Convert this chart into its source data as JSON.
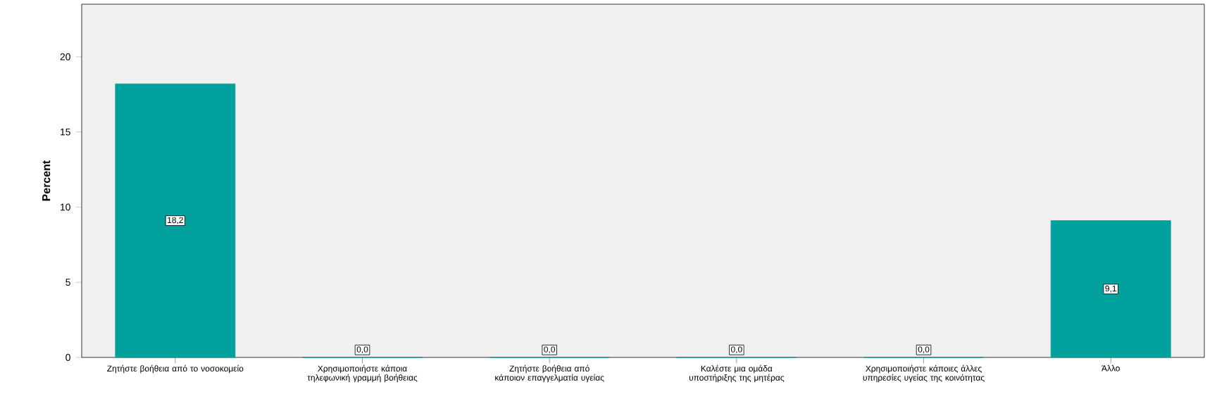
{
  "chart_data": {
    "type": "bar",
    "ylabel": "Percent",
    "categories": [
      "Ζητήστε βοήθεια από το νοσοκομείο",
      "Χρησιμοποιήστε κάποια τηλεφωνική γραμμή βοήθειας",
      "Ζητήστε βοήθεια από κάποιον επαγγελματία υγείας",
      "Καλέστε μια ομάδα υποστήριξης της μητέρας",
      "Χρησιμοποιήστε κάποιες άλλες υπηρεσίες υγείας της κοινότητας",
      "Άλλο"
    ],
    "values": [
      18.2,
      0,
      0,
      0,
      0,
      9.1
    ],
    "value_labels": [
      "18,2",
      "0,0",
      "0,0",
      "0,0",
      "0,0",
      "9,1"
    ],
    "color": "#00a19c",
    "ylim": [
      0,
      23.5
    ],
    "yticks": [
      0,
      5,
      10,
      15,
      20
    ],
    "grid": false
  }
}
